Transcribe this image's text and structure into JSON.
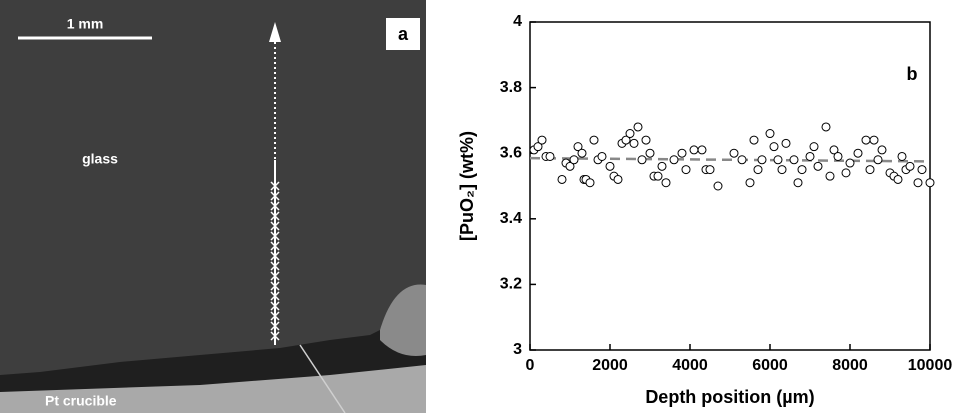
{
  "image_panel": {
    "label": "a",
    "scale_bar": "1 mm",
    "region_top": "glass",
    "region_bottom": "Pt crucible"
  },
  "chart_data": {
    "type": "scatter",
    "panel_label": "b",
    "x_label": "Depth position (µm)",
    "y_label": "[PuO₂] (wt%)",
    "xlim": [
      0,
      10000
    ],
    "xticks": [
      0,
      2000,
      4000,
      6000,
      8000,
      10000
    ],
    "ylim": [
      3,
      4
    ],
    "yticks": [
      3,
      3.2,
      3.4,
      3.6,
      3.8,
      4
    ],
    "marker_fill": "#ffffff",
    "marker_edge": "#000000",
    "x": [
      100,
      200,
      300,
      400,
      500,
      800,
      900,
      1000,
      1100,
      1200,
      1300,
      1350,
      1400,
      1500,
      1600,
      1700,
      1800,
      2000,
      2100,
      2200,
      2300,
      2400,
      2500,
      2600,
      2700,
      2800,
      2900,
      3000,
      3100,
      3200,
      3300,
      3400,
      3600,
      3800,
      3900,
      4100,
      4300,
      4400,
      4500,
      4700,
      5100,
      5300,
      5500,
      5600,
      5700,
      5800,
      6000,
      6100,
      6200,
      6300,
      6400,
      6600,
      6700,
      6800,
      7000,
      7100,
      7200,
      7400,
      7500,
      7600,
      7700,
      7900,
      8000,
      8200,
      8400,
      8500,
      8600,
      8700,
      8800,
      9000,
      9100,
      9200,
      9300,
      9400,
      9500,
      9700,
      9800,
      10000
    ],
    "values": [
      3.61,
      3.62,
      3.64,
      3.59,
      3.59,
      3.52,
      3.57,
      3.56,
      3.58,
      3.62,
      3.6,
      3.52,
      3.52,
      3.51,
      3.64,
      3.58,
      3.59,
      3.56,
      3.53,
      3.52,
      3.63,
      3.64,
      3.66,
      3.63,
      3.68,
      3.58,
      3.64,
      3.6,
      3.53,
      3.53,
      3.56,
      3.51,
      3.58,
      3.6,
      3.55,
      3.61,
      3.61,
      3.55,
      3.55,
      3.5,
      3.6,
      3.58,
      3.51,
      3.64,
      3.55,
      3.58,
      3.66,
      3.62,
      3.58,
      3.55,
      3.63,
      3.58,
      3.51,
      3.55,
      3.59,
      3.62,
      3.56,
      3.68,
      3.53,
      3.61,
      3.59,
      3.54,
      3.57,
      3.6,
      3.64,
      3.55,
      3.64,
      3.58,
      3.61,
      3.54,
      3.53,
      3.52,
      3.59,
      3.55,
      3.56,
      3.51,
      3.55,
      3.51
    ],
    "trend": {
      "x": [
        0,
        10000
      ],
      "y": [
        3.585,
        3.575
      ],
      "color": "#888888"
    }
  }
}
